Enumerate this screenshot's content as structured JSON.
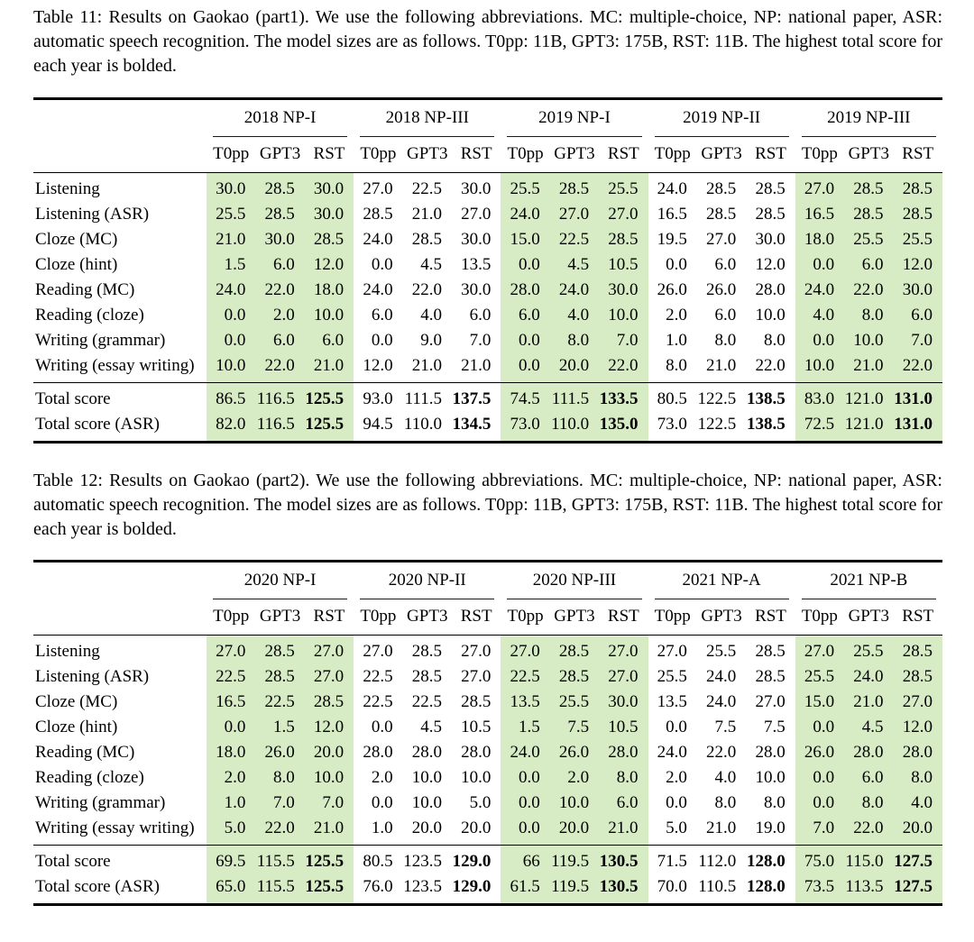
{
  "highlight_color": "#d7ecc5",
  "tables": [
    {
      "caption": "Table 11: Results on Gaokao (part1). We use the following abbreviations. MC: multiple-choice, NP: national paper, ASR: automatic speech recognition. The model sizes are as follows. T0pp: 11B, GPT3: 175B, RST: 11B. The highest total score for each year is bolded.",
      "groups": [
        {
          "label": "2018 NP-I",
          "highlight": true
        },
        {
          "label": "2018 NP-III",
          "highlight": false
        },
        {
          "label": "2019 NP-I",
          "highlight": true
        },
        {
          "label": "2019 NP-II",
          "highlight": false
        },
        {
          "label": "2019 NP-III",
          "highlight": true
        }
      ],
      "subcolumns": [
        "T0pp",
        "GPT3",
        "RST"
      ],
      "rows": [
        {
          "label": "Listening",
          "values": [
            "30.0",
            "28.5",
            "30.0",
            "27.0",
            "22.5",
            "30.0",
            "25.5",
            "28.5",
            "25.5",
            "24.0",
            "28.5",
            "28.5",
            "27.0",
            "28.5",
            "28.5"
          ]
        },
        {
          "label": "Listening (ASR)",
          "values": [
            "25.5",
            "28.5",
            "30.0",
            "28.5",
            "21.0",
            "27.0",
            "24.0",
            "27.0",
            "27.0",
            "16.5",
            "28.5",
            "28.5",
            "16.5",
            "28.5",
            "28.5"
          ]
        },
        {
          "label": "Cloze (MC)",
          "values": [
            "21.0",
            "30.0",
            "28.5",
            "24.0",
            "28.5",
            "30.0",
            "15.0",
            "22.5",
            "28.5",
            "19.5",
            "27.0",
            "30.0",
            "18.0",
            "25.5",
            "25.5"
          ]
        },
        {
          "label": "Cloze (hint)",
          "values": [
            "1.5",
            "6.0",
            "12.0",
            "0.0",
            "4.5",
            "13.5",
            "0.0",
            "4.5",
            "10.5",
            "0.0",
            "6.0",
            "12.0",
            "0.0",
            "6.0",
            "12.0"
          ]
        },
        {
          "label": "Reading (MC)",
          "values": [
            "24.0",
            "22.0",
            "18.0",
            "24.0",
            "22.0",
            "30.0",
            "28.0",
            "24.0",
            "30.0",
            "26.0",
            "26.0",
            "28.0",
            "24.0",
            "22.0",
            "30.0"
          ]
        },
        {
          "label": "Reading (cloze)",
          "values": [
            "0.0",
            "2.0",
            "10.0",
            "6.0",
            "4.0",
            "6.0",
            "6.0",
            "4.0",
            "10.0",
            "2.0",
            "6.0",
            "10.0",
            "4.0",
            "8.0",
            "6.0"
          ]
        },
        {
          "label": "Writing (grammar)",
          "values": [
            "0.0",
            "6.0",
            "6.0",
            "0.0",
            "9.0",
            "7.0",
            "0.0",
            "8.0",
            "7.0",
            "1.0",
            "8.0",
            "8.0",
            "0.0",
            "10.0",
            "7.0"
          ]
        },
        {
          "label": "Writing (essay writing)",
          "values": [
            "10.0",
            "22.0",
            "21.0",
            "12.0",
            "21.0",
            "21.0",
            "0.0",
            "20.0",
            "22.0",
            "8.0",
            "21.0",
            "22.0",
            "10.0",
            "21.0",
            "22.0"
          ]
        }
      ],
      "total_rows": [
        {
          "label": "Total score",
          "values": [
            "86.5",
            "116.5",
            "125.5",
            "93.0",
            "111.5",
            "137.5",
            "74.5",
            "111.5",
            "133.5",
            "80.5",
            "122.5",
            "138.5",
            "83.0",
            "121.0",
            "131.0"
          ],
          "bold": [
            2,
            5,
            8,
            11,
            14
          ]
        },
        {
          "label": "Total score (ASR)",
          "values": [
            "82.0",
            "116.5",
            "125.5",
            "94.5",
            "110.0",
            "134.5",
            "73.0",
            "110.0",
            "135.0",
            "73.0",
            "122.5",
            "138.5",
            "72.5",
            "121.0",
            "131.0"
          ],
          "bold": [
            2,
            5,
            8,
            11,
            14
          ]
        }
      ]
    },
    {
      "caption": "Table 12: Results on Gaokao (part2). We use the following abbreviations. MC: multiple-choice, NP: national paper, ASR: automatic speech recognition. The model sizes are as follows. T0pp: 11B, GPT3: 175B, RST: 11B. The highest total score for each year is bolded.",
      "groups": [
        {
          "label": "2020 NP-I",
          "highlight": true
        },
        {
          "label": "2020 NP-II",
          "highlight": false
        },
        {
          "label": "2020 NP-III",
          "highlight": true
        },
        {
          "label": "2021 NP-A",
          "highlight": false
        },
        {
          "label": "2021 NP-B",
          "highlight": true
        }
      ],
      "subcolumns": [
        "T0pp",
        "GPT3",
        "RST"
      ],
      "rows": [
        {
          "label": "Listening",
          "values": [
            "27.0",
            "28.5",
            "27.0",
            "27.0",
            "28.5",
            "27.0",
            "27.0",
            "28.5",
            "27.0",
            "27.0",
            "25.5",
            "28.5",
            "27.0",
            "25.5",
            "28.5"
          ]
        },
        {
          "label": "Listening (ASR)",
          "values": [
            "22.5",
            "28.5",
            "27.0",
            "22.5",
            "28.5",
            "27.0",
            "22.5",
            "28.5",
            "27.0",
            "25.5",
            "24.0",
            "28.5",
            "25.5",
            "24.0",
            "28.5"
          ]
        },
        {
          "label": "Cloze (MC)",
          "values": [
            "16.5",
            "22.5",
            "28.5",
            "22.5",
            "22.5",
            "28.5",
            "13.5",
            "25.5",
            "30.0",
            "13.5",
            "24.0",
            "27.0",
            "15.0",
            "21.0",
            "27.0"
          ]
        },
        {
          "label": "Cloze (hint)",
          "values": [
            "0.0",
            "1.5",
            "12.0",
            "0.0",
            "4.5",
            "10.5",
            "1.5",
            "7.5",
            "10.5",
            "0.0",
            "7.5",
            "7.5",
            "0.0",
            "4.5",
            "12.0"
          ]
        },
        {
          "label": "Reading (MC)",
          "values": [
            "18.0",
            "26.0",
            "20.0",
            "28.0",
            "28.0",
            "28.0",
            "24.0",
            "26.0",
            "28.0",
            "24.0",
            "22.0",
            "28.0",
            "26.0",
            "28.0",
            "28.0"
          ]
        },
        {
          "label": "Reading (cloze)",
          "values": [
            "2.0",
            "8.0",
            "10.0",
            "2.0",
            "10.0",
            "10.0",
            "0.0",
            "2.0",
            "8.0",
            "2.0",
            "4.0",
            "10.0",
            "0.0",
            "6.0",
            "8.0"
          ]
        },
        {
          "label": "Writing (grammar)",
          "values": [
            "1.0",
            "7.0",
            "7.0",
            "0.0",
            "10.0",
            "5.0",
            "0.0",
            "10.0",
            "6.0",
            "0.0",
            "8.0",
            "8.0",
            "0.0",
            "8.0",
            "4.0"
          ]
        },
        {
          "label": "Writing (essay writing)",
          "values": [
            "5.0",
            "22.0",
            "21.0",
            "1.0",
            "20.0",
            "20.0",
            "0.0",
            "20.0",
            "21.0",
            "5.0",
            "21.0",
            "19.0",
            "7.0",
            "22.0",
            "20.0"
          ]
        }
      ],
      "total_rows": [
        {
          "label": "Total score",
          "values": [
            "69.5",
            "115.5",
            "125.5",
            "80.5",
            "123.5",
            "129.0",
            "66",
            "119.5",
            "130.5",
            "71.5",
            "112.0",
            "128.0",
            "75.0",
            "115.0",
            "127.5"
          ],
          "bold": [
            2,
            5,
            8,
            11,
            14
          ]
        },
        {
          "label": "Total score (ASR)",
          "values": [
            "65.0",
            "115.5",
            "125.5",
            "76.0",
            "123.5",
            "129.0",
            "61.5",
            "119.5",
            "130.5",
            "70.0",
            "110.5",
            "128.0",
            "73.5",
            "113.5",
            "127.5"
          ],
          "bold": [
            2,
            5,
            8,
            11,
            14
          ]
        }
      ]
    }
  ]
}
